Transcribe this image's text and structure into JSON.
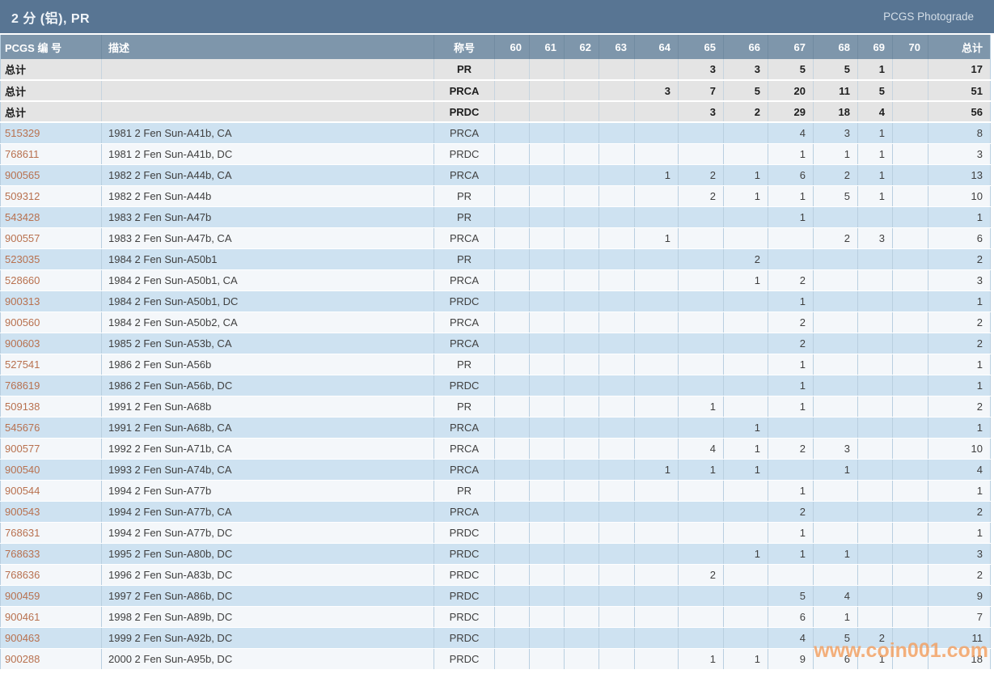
{
  "header": {
    "title": "2 分 (铝), PR",
    "right_label": "PCGS Photograde"
  },
  "table": {
    "columns": [
      "PCGS 编 号",
      "描述",
      "称号",
      "60",
      "61",
      "62",
      "63",
      "64",
      "65",
      "66",
      "67",
      "68",
      "69",
      "70",
      "总计"
    ],
    "summary_rows": [
      {
        "label": "总计",
        "designation": "PR",
        "counts": [
          "",
          "",
          "",
          "",
          "",
          "3",
          "3",
          "5",
          "5",
          "1",
          ""
        ],
        "total": "17"
      },
      {
        "label": "总计",
        "designation": "PRCA",
        "counts": [
          "",
          "",
          "",
          "",
          "3",
          "7",
          "5",
          "20",
          "11",
          "5",
          ""
        ],
        "total": "51"
      },
      {
        "label": "总计",
        "designation": "PRDC",
        "counts": [
          "",
          "",
          "",
          "",
          "",
          "3",
          "2",
          "29",
          "18",
          "4",
          ""
        ],
        "total": "56"
      }
    ],
    "rows": [
      {
        "pcgs_no": "515329",
        "description": "1981 2 Fen Sun-A41b, CA",
        "designation": "PRCA",
        "counts": [
          "",
          "",
          "",
          "",
          "",
          "",
          "",
          "4",
          "3",
          "1",
          ""
        ],
        "total": "8"
      },
      {
        "pcgs_no": "768611",
        "description": "1981 2 Fen Sun-A41b, DC",
        "designation": "PRDC",
        "counts": [
          "",
          "",
          "",
          "",
          "",
          "",
          "",
          "1",
          "1",
          "1",
          ""
        ],
        "total": "3"
      },
      {
        "pcgs_no": "900565",
        "description": "1982 2 Fen Sun-A44b, CA",
        "designation": "PRCA",
        "counts": [
          "",
          "",
          "",
          "",
          "1",
          "2",
          "1",
          "6",
          "2",
          "1",
          ""
        ],
        "total": "13"
      },
      {
        "pcgs_no": "509312",
        "description": "1982 2 Fen Sun-A44b",
        "designation": "PR",
        "counts": [
          "",
          "",
          "",
          "",
          "",
          "2",
          "1",
          "1",
          "5",
          "1",
          ""
        ],
        "total": "10"
      },
      {
        "pcgs_no": "543428",
        "description": "1983 2 Fen Sun-A47b",
        "designation": "PR",
        "counts": [
          "",
          "",
          "",
          "",
          "",
          "",
          "",
          "1",
          "",
          "",
          ""
        ],
        "total": "1"
      },
      {
        "pcgs_no": "900557",
        "description": "1983 2 Fen Sun-A47b, CA",
        "designation": "PRCA",
        "counts": [
          "",
          "",
          "",
          "",
          "1",
          "",
          "",
          "",
          "2",
          "3",
          ""
        ],
        "total": "6"
      },
      {
        "pcgs_no": "523035",
        "description": "1984 2 Fen Sun-A50b1",
        "designation": "PR",
        "counts": [
          "",
          "",
          "",
          "",
          "",
          "",
          "2",
          "",
          "",
          "",
          ""
        ],
        "total": "2"
      },
      {
        "pcgs_no": "528660",
        "description": "1984 2 Fen Sun-A50b1, CA",
        "designation": "PRCA",
        "counts": [
          "",
          "",
          "",
          "",
          "",
          "",
          "1",
          "2",
          "",
          "",
          ""
        ],
        "total": "3"
      },
      {
        "pcgs_no": "900313",
        "description": "1984 2 Fen Sun-A50b1, DC",
        "designation": "PRDC",
        "counts": [
          "",
          "",
          "",
          "",
          "",
          "",
          "",
          "1",
          "",
          "",
          ""
        ],
        "total": "1"
      },
      {
        "pcgs_no": "900560",
        "description": "1984 2 Fen Sun-A50b2, CA",
        "designation": "PRCA",
        "counts": [
          "",
          "",
          "",
          "",
          "",
          "",
          "",
          "2",
          "",
          "",
          ""
        ],
        "total": "2"
      },
      {
        "pcgs_no": "900603",
        "description": "1985 2 Fen Sun-A53b, CA",
        "designation": "PRCA",
        "counts": [
          "",
          "",
          "",
          "",
          "",
          "",
          "",
          "2",
          "",
          "",
          ""
        ],
        "total": "2"
      },
      {
        "pcgs_no": "527541",
        "description": "1986 2 Fen Sun-A56b",
        "designation": "PR",
        "counts": [
          "",
          "",
          "",
          "",
          "",
          "",
          "",
          "1",
          "",
          "",
          ""
        ],
        "total": "1"
      },
      {
        "pcgs_no": "768619",
        "description": "1986 2 Fen Sun-A56b, DC",
        "designation": "PRDC",
        "counts": [
          "",
          "",
          "",
          "",
          "",
          "",
          "",
          "1",
          "",
          "",
          ""
        ],
        "total": "1"
      },
      {
        "pcgs_no": "509138",
        "description": "1991 2 Fen Sun-A68b",
        "designation": "PR",
        "counts": [
          "",
          "",
          "",
          "",
          "",
          "1",
          "",
          "1",
          "",
          "",
          ""
        ],
        "total": "2"
      },
      {
        "pcgs_no": "545676",
        "description": "1991 2 Fen Sun-A68b, CA",
        "designation": "PRCA",
        "counts": [
          "",
          "",
          "",
          "",
          "",
          "",
          "1",
          "",
          "",
          "",
          ""
        ],
        "total": "1"
      },
      {
        "pcgs_no": "900577",
        "description": "1992 2 Fen Sun-A71b, CA",
        "designation": "PRCA",
        "counts": [
          "",
          "",
          "",
          "",
          "",
          "4",
          "1",
          "2",
          "3",
          "",
          ""
        ],
        "total": "10"
      },
      {
        "pcgs_no": "900540",
        "description": "1993 2 Fen Sun-A74b, CA",
        "designation": "PRCA",
        "counts": [
          "",
          "",
          "",
          "",
          "1",
          "1",
          "1",
          "",
          "1",
          "",
          ""
        ],
        "total": "4"
      },
      {
        "pcgs_no": "900544",
        "description": "1994 2 Fen Sun-A77b",
        "designation": "PR",
        "counts": [
          "",
          "",
          "",
          "",
          "",
          "",
          "",
          "1",
          "",
          "",
          ""
        ],
        "total": "1"
      },
      {
        "pcgs_no": "900543",
        "description": "1994 2 Fen Sun-A77b, CA",
        "designation": "PRCA",
        "counts": [
          "",
          "",
          "",
          "",
          "",
          "",
          "",
          "2",
          "",
          "",
          ""
        ],
        "total": "2"
      },
      {
        "pcgs_no": "768631",
        "description": "1994 2 Fen Sun-A77b, DC",
        "designation": "PRDC",
        "counts": [
          "",
          "",
          "",
          "",
          "",
          "",
          "",
          "1",
          "",
          "",
          ""
        ],
        "total": "1"
      },
      {
        "pcgs_no": "768633",
        "description": "1995 2 Fen Sun-A80b, DC",
        "designation": "PRDC",
        "counts": [
          "",
          "",
          "",
          "",
          "",
          "",
          "1",
          "1",
          "1",
          "",
          ""
        ],
        "total": "3"
      },
      {
        "pcgs_no": "768636",
        "description": "1996 2 Fen Sun-A83b, DC",
        "designation": "PRDC",
        "counts": [
          "",
          "",
          "",
          "",
          "",
          "2",
          "",
          "",
          "",
          "",
          ""
        ],
        "total": "2"
      },
      {
        "pcgs_no": "900459",
        "description": "1997 2 Fen Sun-A86b, DC",
        "designation": "PRDC",
        "counts": [
          "",
          "",
          "",
          "",
          "",
          "",
          "",
          "5",
          "4",
          "",
          ""
        ],
        "total": "9"
      },
      {
        "pcgs_no": "900461",
        "description": "1998 2 Fen Sun-A89b, DC",
        "designation": "PRDC",
        "counts": [
          "",
          "",
          "",
          "",
          "",
          "",
          "",
          "6",
          "1",
          "",
          ""
        ],
        "total": "7"
      },
      {
        "pcgs_no": "900463",
        "description": "1999 2 Fen Sun-A92b, DC",
        "designation": "PRDC",
        "counts": [
          "",
          "",
          "",
          "",
          "",
          "",
          "",
          "4",
          "5",
          "2",
          ""
        ],
        "total": "11"
      },
      {
        "pcgs_no": "900288",
        "description": "2000 2 Fen Sun-A95b, DC",
        "designation": "PRDC",
        "counts": [
          "",
          "",
          "",
          "",
          "",
          "1",
          "1",
          "9",
          "6",
          "1",
          ""
        ],
        "total": "18"
      }
    ]
  },
  "watermark": "www.coin001.com",
  "colors": {
    "title_bar": "#587593",
    "header_row": "#7e96ab",
    "row_blue": "#cee2f1",
    "row_light": "#f4f7fa",
    "summary_gray": "#e4e4e4",
    "link_orange": "#b8714f",
    "watermark_orange": "#f39f5f"
  }
}
